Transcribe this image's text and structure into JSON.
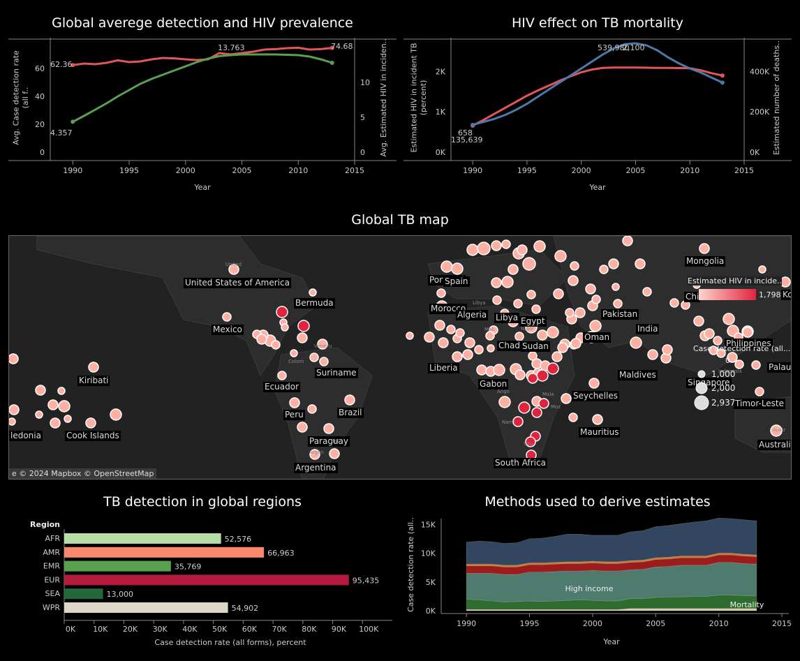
{
  "titles": {
    "p1": "Global averege detection  and HIV prevalence",
    "p2": "HIV effect on TB mortality",
    "map": "Global TB map",
    "bar": "TB detection in global regions",
    "area": "Methods used to derive estimates"
  },
  "colors": {
    "red": "#e15759",
    "green": "#59a14f",
    "blue": "#4e79a7",
    "bubble": "#ffb0a3",
    "bubble_dark": "#c8102e",
    "map_bg": "#222222"
  },
  "chart_data": [
    {
      "id": "detection_hiv",
      "type": "line",
      "title": "Global averege detection  and HIV prevalence",
      "xlabel": "Year",
      "ylabel_left": "Avg. Case detection rate (all f..",
      "ylabel_right": "Avg. Estimated HIV in inciden..",
      "xticks": [
        "1990",
        "1995",
        "2000",
        "2005",
        "2010",
        "2015"
      ],
      "yticks_left": [
        "0",
        "20",
        "40",
        "60"
      ],
      "yticks_right": [
        "0",
        "5",
        "10"
      ],
      "xlim": [
        1988,
        2015
      ],
      "ylim_left": [
        0,
        78
      ],
      "ylim_right": [
        0,
        15.6
      ],
      "series": [
        {
          "axis": "left",
          "color": "#e15759",
          "x": [
            1990,
            1991,
            1992,
            1993,
            1994,
            1995,
            1996,
            1997,
            1998,
            1999,
            2000,
            2001,
            2002,
            2003,
            2004,
            2005,
            2006,
            2007,
            2008,
            2009,
            2010,
            2011,
            2012,
            2013
          ],
          "values": [
            62.36,
            63.5,
            63,
            64,
            65.8,
            64.5,
            65,
            66.5,
            67.5,
            67.2,
            66.5,
            66,
            66.5,
            71,
            70,
            71,
            72,
            73.5,
            73.8,
            74.5,
            74.8,
            73.5,
            73.8,
            74.68
          ]
        },
        {
          "axis": "right",
          "color": "#59a14f",
          "x": [
            1990,
            1991,
            1992,
            1993,
            1994,
            1995,
            1996,
            1997,
            1998,
            1999,
            2000,
            2001,
            2002,
            2003,
            2004,
            2005,
            2006,
            2007,
            2008,
            2009,
            2010,
            2011,
            2012,
            2013
          ],
          "values": [
            4.357,
            5.2,
            6.1,
            7.0,
            8.0,
            8.9,
            9.8,
            10.5,
            11.1,
            11.7,
            12.3,
            12.9,
            13.4,
            13.763,
            13.9,
            14.0,
            14.0,
            14.0,
            14.0,
            13.95,
            13.9,
            13.7,
            13.3,
            12.8
          ]
        }
      ],
      "labels": [
        "62.36",
        "4.357",
        "13.763",
        "74.68"
      ]
    },
    {
      "id": "hiv_mortality",
      "type": "line",
      "title": "HIV effect on TB mortality",
      "xlabel": "Year",
      "ylabel_left": "Estimated HIV in incident TB (percent)",
      "ylabel_right": "Estimated number of deaths..",
      "xticks": [
        "1990",
        "1995",
        "2000",
        "2005",
        "2010",
        "2015"
      ],
      "yticks_left": [
        "0K",
        "1K",
        "2K"
      ],
      "yticks_right": [
        "0K",
        "200K",
        "400K"
      ],
      "xlim": [
        1988,
        2015
      ],
      "ylim_left": [
        0,
        2700
      ],
      "ylim_right": [
        0,
        540000
      ],
      "series": [
        {
          "axis": "left",
          "color": "#e15759",
          "x": [
            1990,
            1991,
            1992,
            1993,
            1994,
            1995,
            1996,
            1997,
            1998,
            1999,
            2000,
            2001,
            2002,
            2003,
            2004,
            2005,
            2006,
            2007,
            2008,
            2009,
            2010,
            2011,
            2012,
            2013
          ],
          "values": [
            658,
            800,
            950,
            1100,
            1250,
            1400,
            1530,
            1650,
            1770,
            1880,
            1980,
            2050,
            2090,
            2100,
            2100,
            2100,
            2095,
            2090,
            2090,
            2085,
            2080,
            2030,
            1960,
            1900
          ]
        },
        {
          "axis": "right",
          "color": "#4e79a7",
          "x": [
            1990,
            1991,
            1992,
            1993,
            1994,
            1995,
            1996,
            1997,
            1998,
            1999,
            2000,
            2001,
            2002,
            2003,
            2004,
            2005,
            2006,
            2007,
            2008,
            2009,
            2010,
            2011,
            2012,
            2013
          ],
          "values": [
            135639,
            150000,
            165000,
            185000,
            210000,
            240000,
            275000,
            310000,
            345000,
            380000,
            415000,
            450000,
            485000,
            515000,
            535000,
            539980,
            530000,
            505000,
            470000,
            440000,
            415000,
            395000,
            370000,
            345000
          ]
        }
      ],
      "labels": [
        "658",
        "135,639",
        "539,980",
        "2,100"
      ]
    },
    {
      "id": "regions",
      "type": "bar",
      "title": "TB detection in global regions",
      "category_header": "Region",
      "xlabel": "Case detection rate (all forms), percent",
      "xticks": [
        "0K",
        "10K",
        "20K",
        "30K",
        "40K",
        "50K",
        "60K",
        "70K",
        "80K",
        "90K",
        "100K"
      ],
      "xlim": [
        0,
        110000
      ],
      "categories": [
        "AFR",
        "AMR",
        "EMR",
        "EUR",
        "SEA",
        "WPR"
      ],
      "values": [
        52576,
        66963,
        35769,
        95435,
        13000,
        54902
      ],
      "value_labels": [
        "52,576",
        "66,963",
        "35,769",
        "95,435",
        "13,000",
        "54,902"
      ],
      "bar_colors": [
        "#b8dca5",
        "#f8896e",
        "#59a14f",
        "#b31b3f",
        "#23673a",
        "#dcd7c8"
      ]
    },
    {
      "id": "methods",
      "type": "area",
      "title": "Methods used to derive estimates",
      "xlabel": "Year",
      "ylabel": "Case detection rate (all..",
      "xticks": [
        "1990",
        "1995",
        "2000",
        "2005",
        "2010",
        "2015"
      ],
      "yticks": [
        "0K",
        "5K",
        "10K",
        "15K"
      ],
      "xlim": [
        1988,
        2015
      ],
      "ylim": [
        0,
        16000
      ],
      "x": [
        1990,
        1991,
        1992,
        1993,
        1994,
        1995,
        1996,
        1997,
        1998,
        1999,
        2000,
        2001,
        2002,
        2003,
        2004,
        2005,
        2006,
        2007,
        2008,
        2009,
        2010,
        2011,
        2012,
        2013
      ],
      "series": [
        {
          "name": "",
          "color": "#d9c9a8",
          "values": [
            200,
            200,
            200,
            200,
            200,
            200,
            200,
            200,
            200,
            200,
            200,
            200,
            200,
            400,
            400,
            400,
            400,
            400,
            400,
            400,
            400,
            400,
            400,
            400
          ]
        },
        {
          "name": "Mortality",
          "color": "#2e6b2e",
          "values": [
            1800,
            1700,
            1500,
            1300,
            1400,
            1500,
            1400,
            1500,
            1600,
            1700,
            1600,
            1500,
            1500,
            1700,
            1700,
            1900,
            2000,
            2000,
            2100,
            2100,
            2300,
            2300,
            2200,
            2200
          ]
        },
        {
          "name": "High income",
          "color": "#4f7a6e",
          "values": [
            4500,
            4600,
            4800,
            4800,
            4700,
            5000,
            5100,
            5100,
            5100,
            5000,
            5200,
            5200,
            5200,
            5000,
            5100,
            5300,
            5300,
            5500,
            5400,
            5400,
            5700,
            5700,
            5600,
            5500
          ]
        },
        {
          "name": "",
          "color": "#9b1c1c",
          "values": [
            1300,
            1300,
            1300,
            1300,
            1300,
            1300,
            1300,
            1300,
            1300,
            1300,
            1300,
            1300,
            1300,
            1300,
            1300,
            1300,
            1300,
            1300,
            1300,
            1300,
            1300,
            1300,
            1300,
            1300
          ]
        },
        {
          "name": "",
          "color": "#c77b30",
          "values": [
            300,
            300,
            300,
            300,
            300,
            300,
            300,
            300,
            300,
            300,
            300,
            300,
            300,
            300,
            300,
            300,
            300,
            300,
            300,
            300,
            300,
            300,
            300,
            300
          ]
        },
        {
          "name": "",
          "color": "#33465f",
          "values": [
            3800,
            4000,
            3900,
            3800,
            3900,
            4200,
            4300,
            4500,
            4800,
            4800,
            4500,
            4600,
            4600,
            5000,
            5100,
            5400,
            5500,
            5600,
            5900,
            6100,
            6100,
            6000,
            6000,
            5900
          ]
        }
      ],
      "labels": [
        "High income",
        "Mortality"
      ]
    }
  ],
  "map": {
    "attribution": "© 2024 Mapbox © OpenStreetMap",
    "attribution_prefix": "e",
    "legend_color_title": "Estimated HIV in incide..",
    "legend_color_max": "1,798",
    "legend_size_title": "Case detection rate (all...",
    "legend_size_values": [
      "1,000",
      "2,000",
      "2,937"
    ],
    "legend_size_top": "0",
    "labels": [
      {
        "text": "United States of America"
      },
      {
        "text": "Bermuda"
      },
      {
        "text": "Mexico"
      },
      {
        "text": "Kiribati"
      },
      {
        "text": "Ecuador"
      },
      {
        "text": "Suriname"
      },
      {
        "text": "Brazil"
      },
      {
        "text": "Peru"
      },
      {
        "text": "Paraguay"
      },
      {
        "text": "Argentina"
      },
      {
        "text": "Cook Islands"
      },
      {
        "text": "ledonia"
      },
      {
        "text": "Portugal"
      },
      {
        "text": "Spain"
      },
      {
        "text": "Morocco"
      },
      {
        "text": "Algeria"
      },
      {
        "text": "Libya"
      },
      {
        "text": "Egypt"
      },
      {
        "text": "Chad"
      },
      {
        "text": "Sudan"
      },
      {
        "text": "Liberia"
      },
      {
        "text": "Gabon"
      },
      {
        "text": "Oman"
      },
      {
        "text": "Pakistan"
      },
      {
        "text": "India"
      },
      {
        "text": "Maldives"
      },
      {
        "text": "Seychelles"
      },
      {
        "text": "Mauritius"
      },
      {
        "text": "South Africa"
      },
      {
        "text": "Mongolia"
      },
      {
        "text": "Chi"
      },
      {
        "text": "Kore"
      },
      {
        "text": "Philippines"
      },
      {
        "text": "Palau"
      },
      {
        "text": "Singapore"
      },
      {
        "text": "Timor-Leste"
      },
      {
        "text": "Australia"
      }
    ],
    "faint_labels": [
      "United",
      "Colom",
      "Venezu",
      "Bol",
      "Argen",
      "Libya",
      "Mali",
      "Niger",
      "Ango",
      "Nami",
      "Sou",
      "Indonesia",
      "Austr",
      "Moz",
      "Mala"
    ]
  }
}
